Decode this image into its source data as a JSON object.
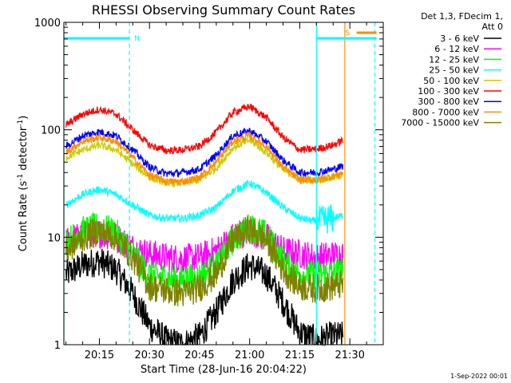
{
  "chart_data": {
    "type": "line",
    "title": "RHESSI Observing Summary Count Rates",
    "xlabel": "Start Time (28-Jun-16 20:04:22)",
    "ylabel_prefix": "Count Rate (s",
    "ylabel_sup1": "-1",
    "ylabel_mid": " detector",
    "ylabel_sup2": "-1",
    "ylabel_suffix": ")",
    "y_scale": "log",
    "ylim": [
      1,
      1000
    ],
    "xlim": [
      "20:04:22",
      "21:40:00"
    ],
    "x_ticks": [
      "20:15",
      "20:30",
      "20:45",
      "21:00",
      "21:15",
      "21:30"
    ],
    "y_ticks": [
      "1",
      "10",
      "100",
      "1000"
    ],
    "grid": false,
    "legend_position": "right",
    "legend_header": [
      "Det 1,3, FDecim 1,",
      "Att 0"
    ],
    "time_stamp": "1-Sep-2022 00:01",
    "flags": [
      {
        "label": "N",
        "color": "#00ffff",
        "start": "20:04:22",
        "end": "20:24:00"
      },
      {
        "label": "S",
        "color": "#ff8c00",
        "start": "21:32:00",
        "end": "21:38:00"
      }
    ],
    "night_bar": {
      "color": "#00ffff",
      "start": "21:20:00",
      "end": "21:38:00"
    },
    "vertical_lines": [
      {
        "time": "20:04:22",
        "color": "#00ffff",
        "style": "solid"
      },
      {
        "time": "20:24:00",
        "color": "#00ffff",
        "style": "dashed"
      },
      {
        "time": "21:20:00",
        "color": "#00ffff",
        "style": "solid"
      },
      {
        "time": "21:28:30",
        "color": "#ff8c00",
        "style": "solid"
      },
      {
        "time": "21:37:30",
        "color": "#00ffff",
        "style": "dashed"
      }
    ],
    "x": [
      "20:05",
      "20:10",
      "20:15",
      "20:20",
      "20:25",
      "20:30",
      "20:35",
      "20:40",
      "20:45",
      "20:50",
      "20:55",
      "21:00",
      "21:05",
      "21:10",
      "21:15",
      "21:20",
      "21:25",
      "21:28"
    ],
    "series": [
      {
        "name": "3 - 6 keV",
        "color": "#000000",
        "values": [
          4.5,
          5.5,
          6,
          5,
          3,
          1.5,
          1.1,
          1,
          1.2,
          2,
          4,
          5.5,
          4.5,
          2.5,
          1.3,
          1.1,
          1.2,
          1.2
        ]
      },
      {
        "name": "6 - 12 keV",
        "color": "#ff00ff",
        "values": [
          9,
          10.5,
          11,
          10,
          8,
          7,
          6.5,
          6.3,
          6.5,
          7.5,
          10,
          11.5,
          10,
          7.5,
          7,
          6.5,
          6.8,
          7
        ]
      },
      {
        "name": "12 - 25 keV",
        "color": "#00ff00",
        "values": [
          9,
          11.5,
          12.5,
          11,
          7,
          4.5,
          4.2,
          4,
          4.3,
          5.5,
          9.5,
          12.5,
          10.5,
          6,
          4.5,
          4.5,
          4.6,
          4.8
        ]
      },
      {
        "name": "25 - 50 keV",
        "color": "#00ffff",
        "values": [
          20,
          25,
          28,
          25,
          20,
          16,
          15,
          15,
          16,
          19,
          27,
          32,
          26,
          19,
          15,
          14,
          15,
          16
        ]
      },
      {
        "name": "50 - 100 keV",
        "color": "#cccc00",
        "values": [
          55,
          65,
          72,
          65,
          48,
          36,
          32,
          32,
          34,
          44,
          68,
          80,
          62,
          42,
          35,
          34,
          36,
          38
        ]
      },
      {
        "name": "100 - 300 keV",
        "color": "#ff0000",
        "values": [
          110,
          140,
          155,
          140,
          100,
          72,
          64,
          65,
          70,
          95,
          145,
          165,
          130,
          85,
          65,
          66,
          72,
          80
        ]
      },
      {
        "name": "300 - 800 keV",
        "color": "#0000ff",
        "values": [
          70,
          88,
          96,
          88,
          65,
          45,
          39,
          40,
          43,
          58,
          88,
          98,
          78,
          52,
          40,
          40,
          43,
          46
        ]
      },
      {
        "name": "800 - 7000 keV",
        "color": "#ff8c00",
        "values": [
          62,
          78,
          85,
          78,
          55,
          38,
          33,
          33,
          36,
          50,
          78,
          88,
          70,
          45,
          34,
          34,
          37,
          40
        ]
      },
      {
        "name": "7000 - 15000 keV",
        "color": "#808000",
        "values": [
          7.5,
          10,
          11.5,
          10,
          6.5,
          3.5,
          3.2,
          3,
          3.4,
          4.5,
          9.5,
          12,
          9.5,
          5,
          3.5,
          3.3,
          3.5,
          3.6
        ]
      }
    ]
  }
}
